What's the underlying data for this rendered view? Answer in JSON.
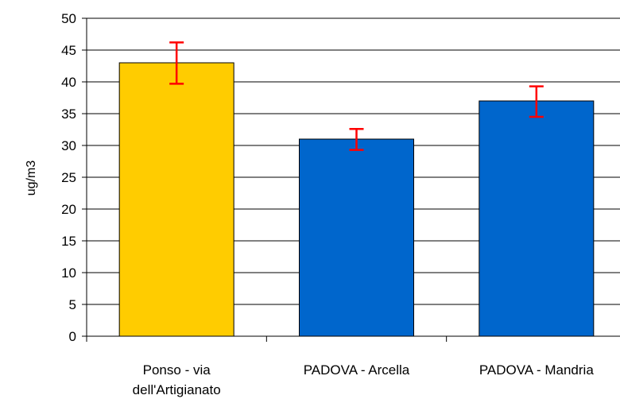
{
  "chart_data": {
    "type": "bar",
    "title": "",
    "xlabel": "",
    "ylabel": "ug/m3",
    "ylim": [
      0,
      50
    ],
    "ytick_step": 5,
    "grid": true,
    "legend": "none",
    "categories": [
      [
        "Ponso - via",
        "dell'Artigianato"
      ],
      [
        "PADOVA - Arcella"
      ],
      [
        "PADOVA - Mandria"
      ]
    ],
    "values": [
      43,
      31,
      37
    ],
    "error_low": [
      39.7,
      29.3,
      34.5
    ],
    "error_high": [
      46.2,
      32.6,
      39.3
    ],
    "bar_colors": [
      "#FFCC00",
      "#0066CC",
      "#0066CC"
    ],
    "error_bar_color": "#FF0000"
  }
}
